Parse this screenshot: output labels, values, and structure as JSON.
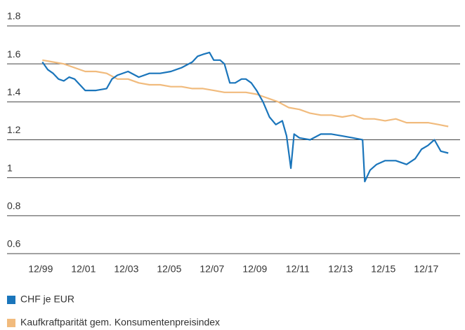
{
  "chart_data": {
    "type": "line",
    "xlim": [
      1998.35,
      2019.5
    ],
    "xticks": [
      {
        "value": 1999.92,
        "label": "12/99"
      },
      {
        "value": 2001.92,
        "label": "12/01"
      },
      {
        "value": 2003.92,
        "label": "12/03"
      },
      {
        "value": 2005.92,
        "label": "12/05"
      },
      {
        "value": 2007.92,
        "label": "12/07"
      },
      {
        "value": 2009.92,
        "label": "12/09"
      },
      {
        "value": 2011.92,
        "label": "12/11"
      },
      {
        "value": 2013.92,
        "label": "12/13"
      },
      {
        "value": 2015.92,
        "label": "12/15"
      },
      {
        "value": 2017.92,
        "label": "12/17"
      }
    ],
    "ylim": [
      0.6,
      1.8
    ],
    "yticks": [
      0.6,
      0.8,
      1,
      1.2,
      1.4,
      1.6,
      1.8
    ],
    "grid": true,
    "legend": "bottom-left",
    "series": [
      {
        "name": "CHF je EUR",
        "color": "#1a75bb",
        "x": [
          2000.0,
          2000.25,
          2000.5,
          2000.75,
          2001.0,
          2001.25,
          2001.5,
          2001.75,
          2002.0,
          2002.5,
          2003.0,
          2003.25,
          2003.5,
          2004.0,
          2004.5,
          2005.0,
          2005.5,
          2006.0,
          2006.5,
          2007.0,
          2007.25,
          2007.5,
          2007.8,
          2008.0,
          2008.3,
          2008.5,
          2008.75,
          2009.0,
          2009.3,
          2009.5,
          2009.75,
          2010.0,
          2010.3,
          2010.6,
          2010.9,
          2011.2,
          2011.4,
          2011.6,
          2011.75,
          2012.0,
          2012.5,
          2013.0,
          2013.5,
          2014.0,
          2014.5,
          2014.95,
          2015.05,
          2015.3,
          2015.6,
          2016.0,
          2016.5,
          2017.0,
          2017.4,
          2017.7,
          2018.0,
          2018.3,
          2018.6,
          2018.95
        ],
        "values": [
          1.61,
          1.57,
          1.55,
          1.52,
          1.51,
          1.53,
          1.52,
          1.49,
          1.46,
          1.46,
          1.47,
          1.52,
          1.54,
          1.56,
          1.53,
          1.55,
          1.55,
          1.56,
          1.58,
          1.61,
          1.64,
          1.65,
          1.66,
          1.62,
          1.62,
          1.6,
          1.5,
          1.5,
          1.52,
          1.52,
          1.5,
          1.46,
          1.4,
          1.32,
          1.28,
          1.3,
          1.22,
          1.05,
          1.23,
          1.21,
          1.2,
          1.23,
          1.23,
          1.22,
          1.21,
          1.2,
          0.98,
          1.04,
          1.07,
          1.09,
          1.09,
          1.07,
          1.1,
          1.15,
          1.17,
          1.2,
          1.14,
          1.13
        ]
      },
      {
        "name": "Kaufkraftparität gem. Konsumentenpreisindex",
        "color": "#f1bb7d",
        "x": [
          2000.0,
          2000.5,
          2001.0,
          2001.5,
          2002.0,
          2002.5,
          2003.0,
          2003.5,
          2004.0,
          2004.5,
          2005.0,
          2005.5,
          2006.0,
          2006.5,
          2007.0,
          2007.5,
          2008.0,
          2008.5,
          2009.0,
          2009.5,
          2010.0,
          2010.5,
          2011.0,
          2011.5,
          2012.0,
          2012.5,
          2013.0,
          2013.5,
          2014.0,
          2014.5,
          2015.0,
          2015.5,
          2016.0,
          2016.5,
          2017.0,
          2017.5,
          2018.0,
          2018.5,
          2018.95
        ],
        "values": [
          1.62,
          1.61,
          1.6,
          1.58,
          1.56,
          1.56,
          1.55,
          1.52,
          1.52,
          1.5,
          1.49,
          1.49,
          1.48,
          1.48,
          1.47,
          1.47,
          1.46,
          1.45,
          1.45,
          1.45,
          1.44,
          1.42,
          1.4,
          1.37,
          1.36,
          1.34,
          1.33,
          1.33,
          1.32,
          1.33,
          1.31,
          1.31,
          1.3,
          1.31,
          1.29,
          1.29,
          1.29,
          1.28,
          1.27
        ]
      }
    ]
  }
}
